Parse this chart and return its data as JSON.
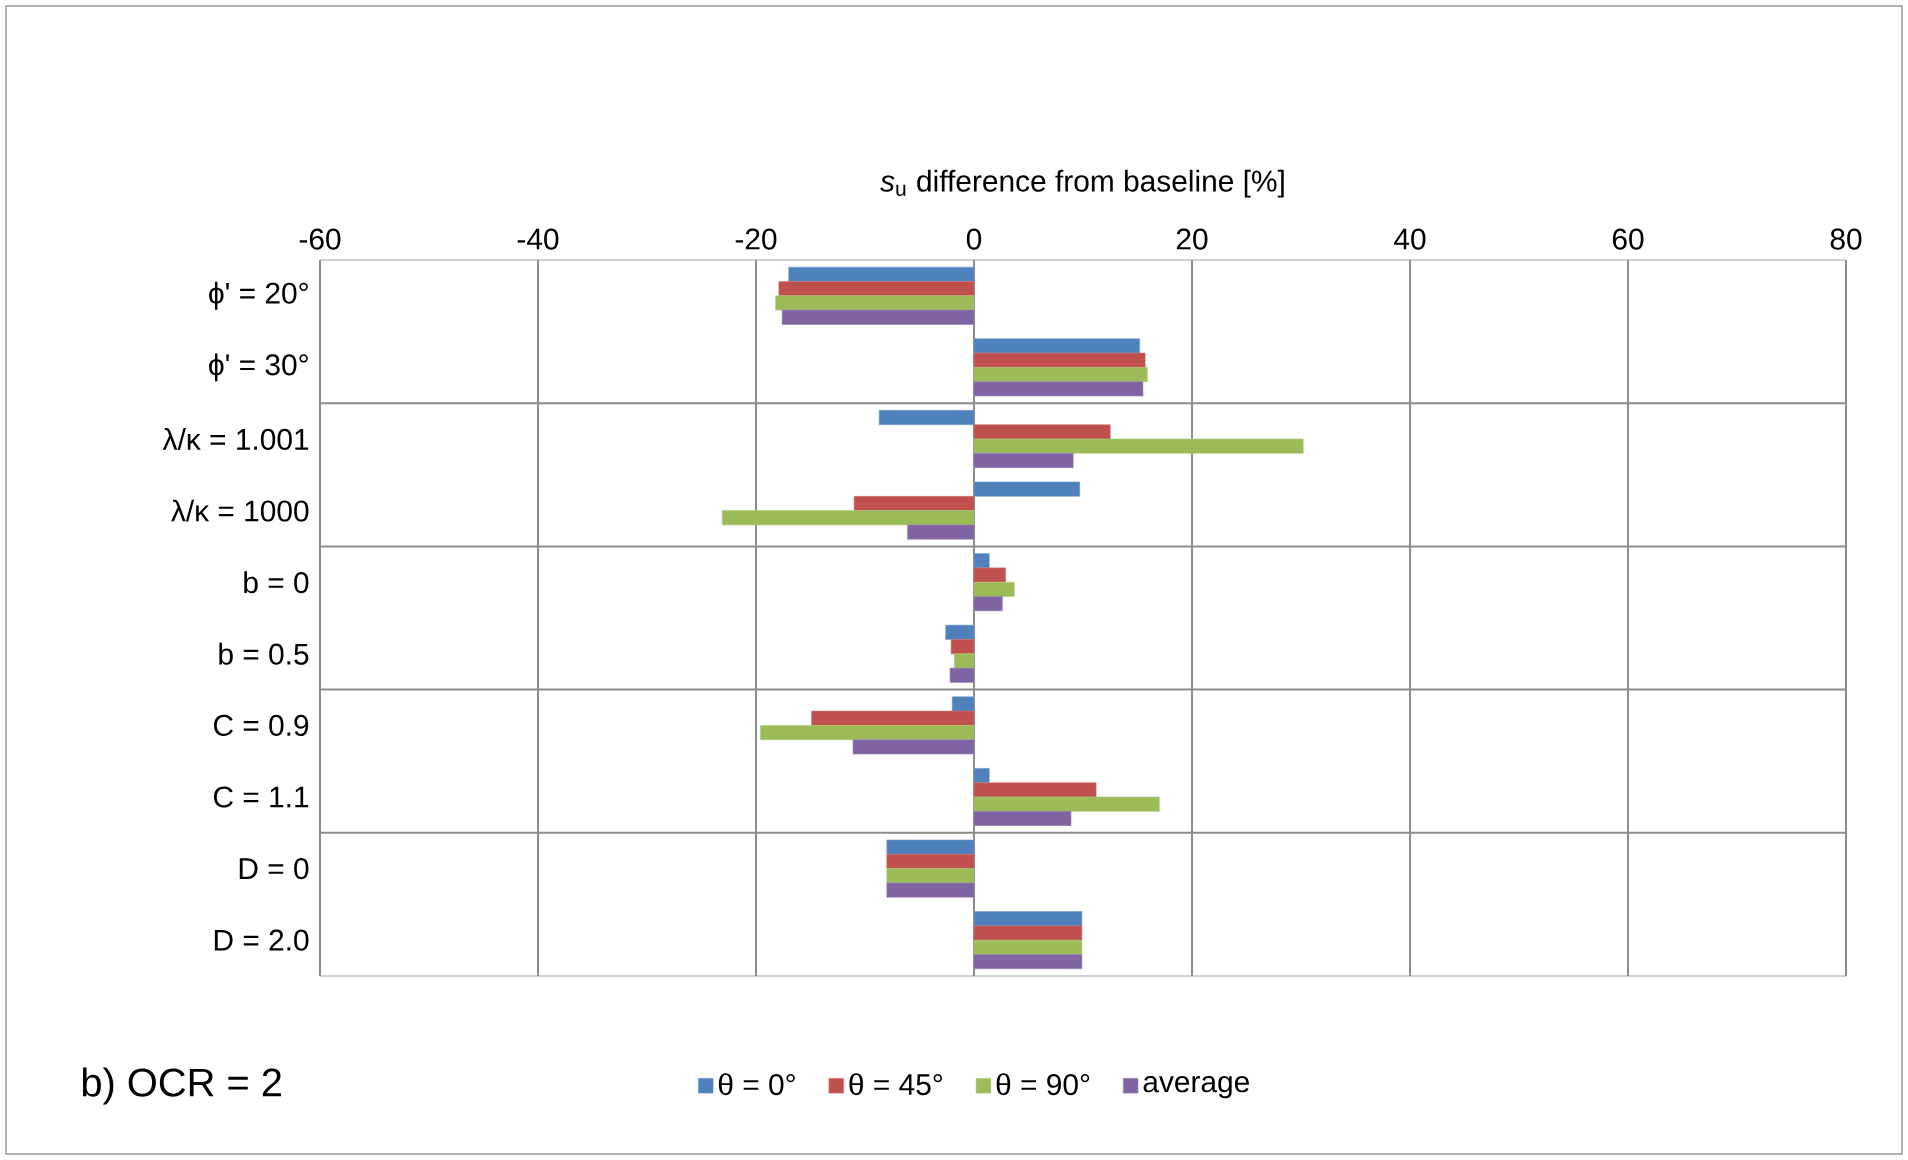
{
  "chart_data": {
    "type": "bar",
    "orientation": "horizontal",
    "xlabel": "*s*$_{u}$ difference from baseline [%]",
    "categories": [
      "ϕ' = 20°",
      "ϕ' = 30°",
      "λ/κ = 1.001",
      "λ/κ = 1000",
      "b = 0",
      "b = 0.5",
      "C = 0.9",
      "C = 1.1",
      "D = 0",
      "D = 2.0"
    ],
    "series": [
      {
        "name": "θ = 0°",
        "color": "#4f81bd",
        "values": [
          -17.0,
          15.2,
          -8.7,
          9.7,
          1.4,
          -2.6,
          -2.0,
          1.4,
          -8.0,
          9.9
        ]
      },
      {
        "name": "θ = 45°",
        "color": "#c0504d",
        "values": [
          -17.9,
          15.7,
          12.5,
          -11.0,
          2.9,
          -2.1,
          -14.9,
          11.2,
          -8.0,
          9.9
        ]
      },
      {
        "name": "θ = 90°",
        "color": "#9bbb59",
        "values": [
          -18.2,
          15.9,
          30.2,
          -23.1,
          3.7,
          -1.8,
          -19.6,
          17.0,
          -8.0,
          9.9
        ]
      },
      {
        "name": "average",
        "color": "#8064a2",
        "values": [
          -17.6,
          15.5,
          9.1,
          -6.1,
          2.6,
          -2.2,
          -11.1,
          8.9,
          -8.0,
          9.9
        ]
      }
    ],
    "xlim": [
      -60,
      80
    ],
    "xticks": [
      -60,
      -40,
      -20,
      0,
      20,
      40,
      60,
      80
    ],
    "grid": true,
    "legend": "bottom",
    "annotations": [
      "b) OCR = 2"
    ]
  }
}
